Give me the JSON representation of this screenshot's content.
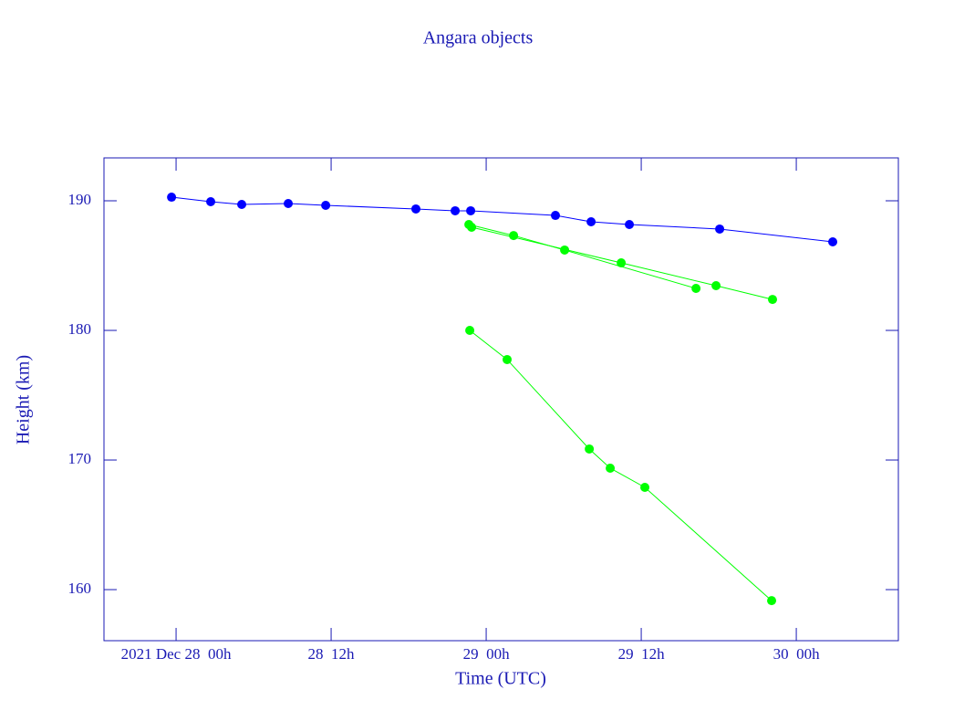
{
  "chart_data": {
    "type": "line",
    "title": "Angara objects",
    "x_label": "Time (UTC)",
    "y_label": "Height (km)",
    "xlim": [
      -5.58,
      55.9
    ],
    "ylim": [
      156.06,
      193.31
    ],
    "xticks": [
      {
        "value": 0,
        "label": "2021 Dec 28  00h"
      },
      {
        "value": 12,
        "label": "28  12h"
      },
      {
        "value": 24,
        "label": "29  00h"
      },
      {
        "value": 36,
        "label": "29  12h"
      },
      {
        "value": 48,
        "label": "30  00h"
      }
    ],
    "yticks": [
      160,
      170,
      180,
      190
    ],
    "series": [
      {
        "color": "#0000ff",
        "x": [
          -0.35,
          2.68,
          5.08,
          8.68,
          11.58,
          18.56,
          21.6,
          22.8,
          29.36,
          32.12,
          35.08,
          42.07,
          50.82
        ],
        "values": [
          190.28,
          189.93,
          189.72,
          189.79,
          189.65,
          189.37,
          189.23,
          189.23,
          188.87,
          188.38,
          188.17,
          187.82,
          186.83
        ]
      },
      {
        "color": "#00ff00",
        "x": [
          22.66,
          26.12,
          30.07,
          40.24
        ],
        "values": [
          188.17,
          187.32,
          186.2,
          183.24
        ]
      },
      {
        "color": "#00ff00",
        "x": [
          22.87,
          34.45,
          41.79,
          46.16
        ],
        "values": [
          187.96,
          185.21,
          183.45,
          182.39
        ]
      },
      {
        "color": "#00ff00",
        "x": [
          22.73,
          25.62,
          31.98,
          33.6,
          36.28,
          46.09
        ],
        "values": [
          180.0,
          177.75,
          170.85,
          169.37,
          167.89,
          159.15
        ]
      }
    ]
  }
}
